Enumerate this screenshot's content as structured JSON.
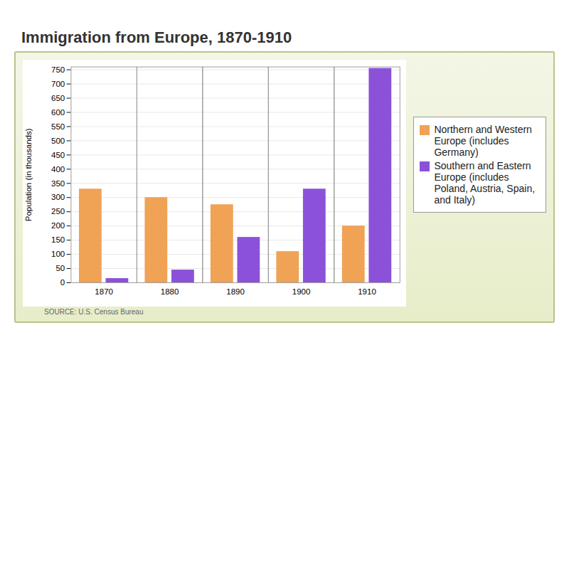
{
  "chart_data": {
    "type": "bar",
    "title": "Immigration from Europe, 1870-1910",
    "y_label": "Population (in thousands)",
    "caption": "SOURCE: U.S. Census Bureau",
    "categories": [
      "1870",
      "1880",
      "1890",
      "1900",
      "1910"
    ],
    "series": [
      {
        "name": "Northern and Western Europe (includes Germany)",
        "color": "#f0a255",
        "values": [
          330,
          300,
          275,
          110,
          200
        ]
      },
      {
        "name": "Southern and Eastern Europe (includes Poland, Austria, Spain, and Italy)",
        "color": "#8b52d9",
        "values": [
          15,
          45,
          160,
          330,
          755
        ]
      }
    ],
    "ylim": [
      0,
      760
    ],
    "yticks": [
      0,
      50,
      100,
      150,
      200,
      250,
      300,
      350,
      400,
      450,
      500,
      550,
      600,
      650,
      700,
      750
    ],
    "grid": true,
    "legend": "right"
  }
}
